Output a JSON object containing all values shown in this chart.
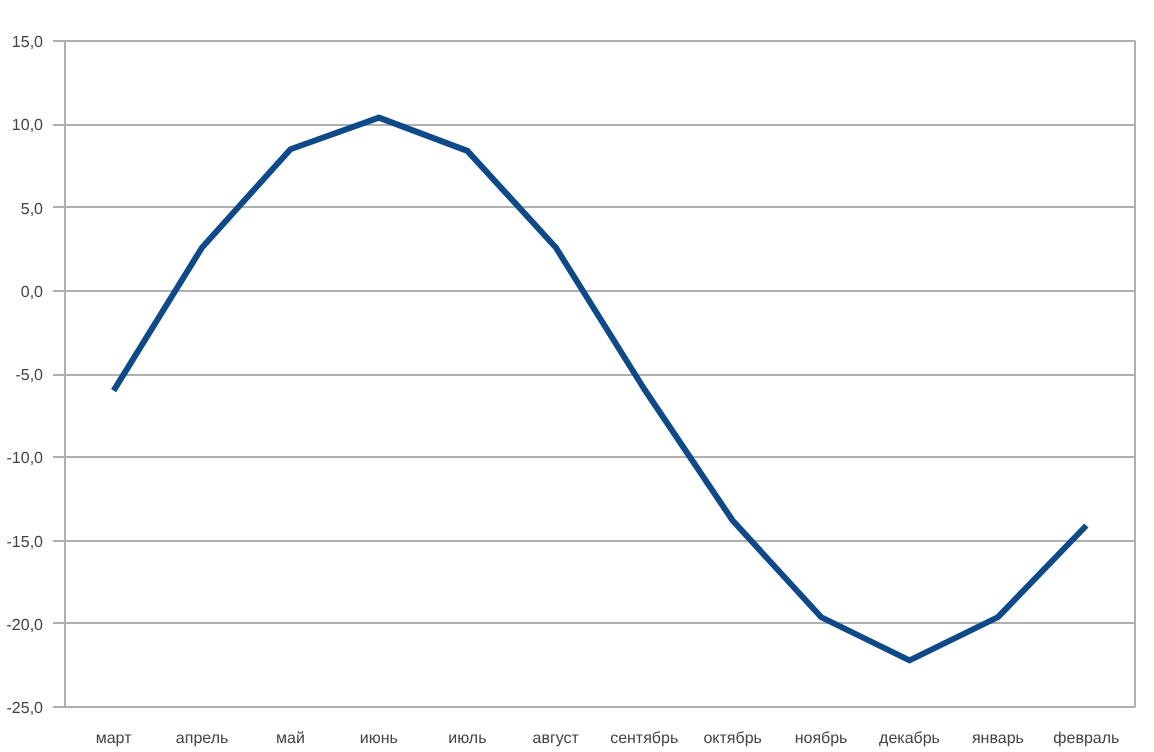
{
  "chart_data": {
    "type": "line",
    "categories": [
      "март",
      "апрель",
      "май",
      "июнь",
      "июль",
      "август",
      "сентябрь",
      "октябрь",
      "ноябрь",
      "декабрь",
      "январь",
      "февраль"
    ],
    "series": [
      {
        "color": "#0e4a8a",
        "values": [
          -6.0,
          2.6,
          8.5,
          10.4,
          8.4,
          2.6,
          -5.9,
          -13.8,
          -19.6,
          -22.2,
          -19.6,
          -14.1
        ]
      }
    ],
    "ylim": [
      -25,
      15
    ],
    "yticks": [
      {
        "value": -25,
        "label": "-25,0"
      },
      {
        "value": -20,
        "label": "-20,0"
      },
      {
        "value": -15,
        "label": "-15,0"
      },
      {
        "value": -10,
        "label": "-10,0"
      },
      {
        "value": -5,
        "label": "-5,0"
      },
      {
        "value": 0,
        "label": "0,0"
      },
      {
        "value": 5,
        "label": "5,0"
      },
      {
        "value": 10,
        "label": "10,0"
      },
      {
        "value": 15,
        "label": "15,0"
      }
    ],
    "grid": "y",
    "marker": "none",
    "line_style": "solid"
  }
}
